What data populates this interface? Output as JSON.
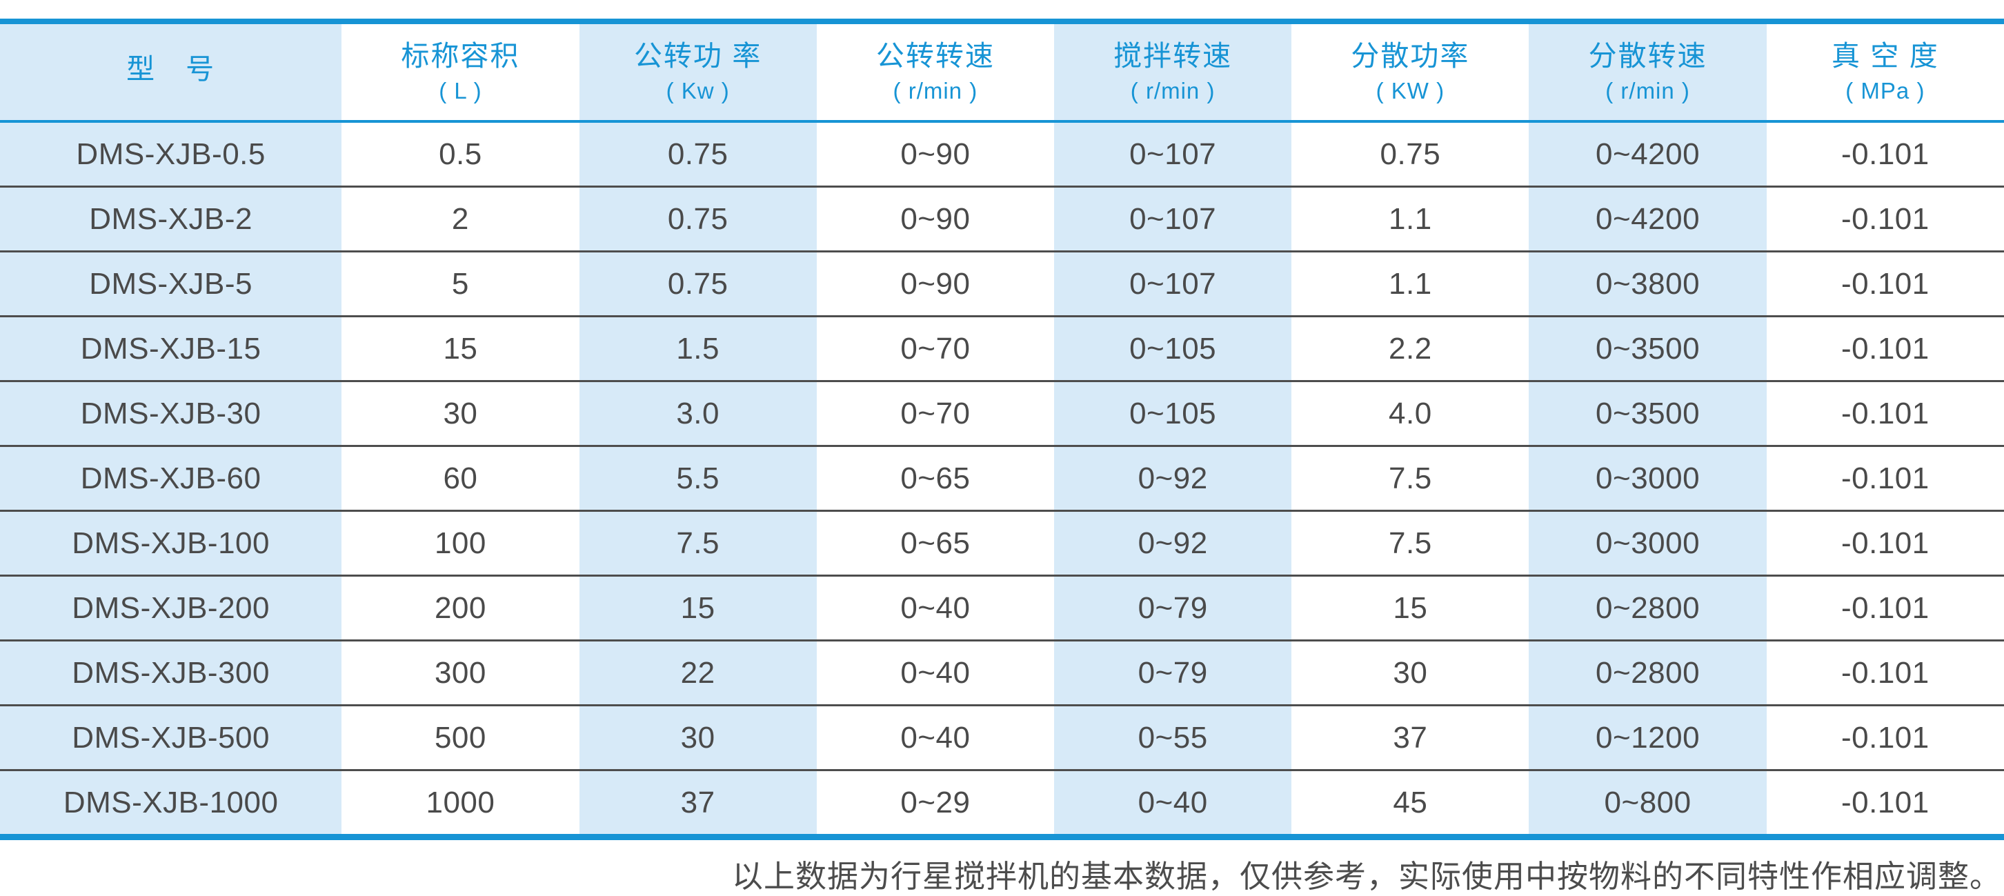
{
  "colors": {
    "accent_blue": "#1794d5",
    "light_blue_column": "#d7eaf8",
    "cell_text": "#4a4a4a",
    "row_separator": "#4d4d4d"
  },
  "table": {
    "columns": [
      {
        "label": "型　号",
        "unit": ""
      },
      {
        "label": "标称容积",
        "unit": "( L )"
      },
      {
        "label": "公转功 率",
        "unit": "( Kw )"
      },
      {
        "label": "公转转速",
        "unit": "( r/min )"
      },
      {
        "label": "搅拌转速",
        "unit": "( r/min )"
      },
      {
        "label": "分散功率",
        "unit": "( KW )"
      },
      {
        "label": "分散转速",
        "unit": "( r/min )"
      },
      {
        "label": "真 空 度",
        "unit": "( MPa )"
      }
    ],
    "rows": [
      [
        "DMS-XJB-0.5",
        "0.5",
        "0.75",
        "0~90",
        "0~107",
        "0.75",
        "0~4200",
        "-0.101"
      ],
      [
        "DMS-XJB-2",
        "2",
        "0.75",
        "0~90",
        "0~107",
        "1.1",
        "0~4200",
        "-0.101"
      ],
      [
        "DMS-XJB-5",
        "5",
        "0.75",
        "0~90",
        "0~107",
        "1.1",
        "0~3800",
        "-0.101"
      ],
      [
        "DMS-XJB-15",
        "15",
        "1.5",
        "0~70",
        "0~105",
        "2.2",
        "0~3500",
        "-0.101"
      ],
      [
        "DMS-XJB-30",
        "30",
        "3.0",
        "0~70",
        "0~105",
        "4.0",
        "0~3500",
        "-0.101"
      ],
      [
        "DMS-XJB-60",
        "60",
        "5.5",
        "0~65",
        "0~92",
        "7.5",
        "0~3000",
        "-0.101"
      ],
      [
        "DMS-XJB-100",
        "100",
        "7.5",
        "0~65",
        "0~92",
        "7.5",
        "0~3000",
        "-0.101"
      ],
      [
        "DMS-XJB-200",
        "200",
        "15",
        "0~40",
        "0~79",
        "15",
        "0~2800",
        "-0.101"
      ],
      [
        "DMS-XJB-300",
        "300",
        "22",
        "0~40",
        "0~79",
        "30",
        "0~2800",
        "-0.101"
      ],
      [
        "DMS-XJB-500",
        "500",
        "30",
        "0~40",
        "0~55",
        "37",
        "0~1200",
        "-0.101"
      ],
      [
        "DMS-XJB-1000",
        "1000",
        "37",
        "0~29",
        "0~40",
        "45",
        "0~800",
        "-0.101"
      ]
    ]
  },
  "footnote": "以上数据为行星搅拌机的基本数据，仅供参考，实际使用中按物料的不同特性作相应调整。"
}
